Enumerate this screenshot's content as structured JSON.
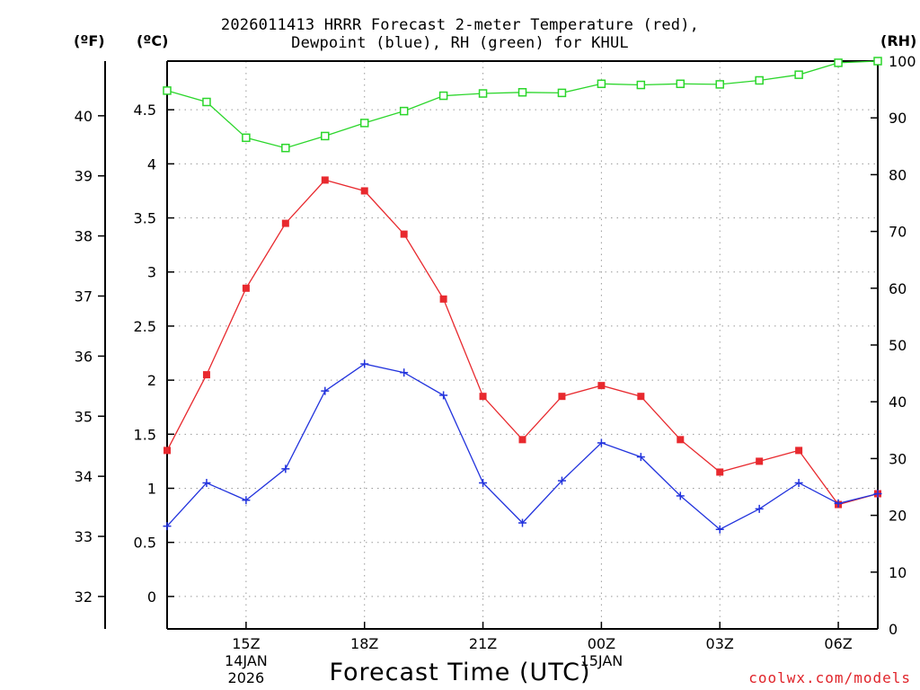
{
  "chart_data": {
    "type": "line",
    "title_line1": "2026011413 HRRR Forecast 2-meter Temperature (red),",
    "title_line2": "Dewpoint (blue), RH (green) for KHUL",
    "xlabel": "Forecast Time (UTC)",
    "credit": "coolwx.com/models",
    "unit_labels": {
      "fahrenheit": "(ºF)",
      "celsius": "(ºC)",
      "rh": "(RH)"
    },
    "x_hours": [
      13,
      14,
      15,
      16,
      17,
      18,
      19,
      20,
      21,
      22,
      23,
      24,
      25,
      26,
      27,
      28,
      29,
      30,
      31
    ],
    "x_range": [
      13,
      31
    ],
    "x_ticks": [
      {
        "hour": 15,
        "label": "15Z",
        "sub1": "14JAN",
        "sub2": "2026"
      },
      {
        "hour": 18,
        "label": "18Z",
        "sub1": "",
        "sub2": ""
      },
      {
        "hour": 21,
        "label": "21Z",
        "sub1": "",
        "sub2": ""
      },
      {
        "hour": 24,
        "label": "00Z",
        "sub1": "15JAN",
        "sub2": ""
      },
      {
        "hour": 27,
        "label": "03Z",
        "sub1": "",
        "sub2": ""
      },
      {
        "hour": 30,
        "label": "06Z",
        "sub1": "",
        "sub2": ""
      }
    ],
    "celsius_axis": {
      "range": [
        -0.3,
        4.95
      ],
      "ticks": [
        "0",
        "0.5",
        "1",
        "1.5",
        "2",
        "2.5",
        "3",
        "3.5",
        "4",
        "4.5"
      ]
    },
    "fahrenheit_axis": {
      "ticks": [
        "32",
        "33",
        "34",
        "35",
        "36",
        "37",
        "38",
        "39",
        "40"
      ]
    },
    "rh_axis": {
      "range": [
        0,
        100
      ],
      "ticks": [
        "0",
        "10",
        "20",
        "30",
        "40",
        "50",
        "60",
        "70",
        "80",
        "90",
        "100"
      ]
    },
    "series": [
      {
        "name": "Temperature",
        "axis": "celsius",
        "color": "#e8292e",
        "marker": "filled-square",
        "values": [
          1.35,
          2.05,
          2.85,
          3.45,
          3.85,
          3.75,
          3.35,
          2.75,
          1.85,
          1.45,
          1.85,
          1.95,
          1.85,
          1.45,
          1.15,
          1.25,
          1.35,
          0.85,
          0.95
        ]
      },
      {
        "name": "Dewpoint",
        "axis": "celsius",
        "color": "#2233dd",
        "marker": "plus",
        "values": [
          0.65,
          1.05,
          0.89,
          1.18,
          1.9,
          2.15,
          2.07,
          1.86,
          1.05,
          0.68,
          1.07,
          1.42,
          1.29,
          0.93,
          0.62,
          0.81,
          1.05,
          0.86,
          0.95
        ]
      },
      {
        "name": "RH",
        "axis": "rh",
        "color": "#2bd62b",
        "marker": "open-square",
        "values": [
          94.8,
          92.8,
          86.5,
          84.7,
          86.8,
          89.1,
          91.2,
          93.9,
          94.3,
          94.5,
          94.4,
          96.0,
          95.8,
          96.0,
          95.9,
          96.6,
          97.6,
          99.7,
          100.0
        ]
      }
    ]
  }
}
